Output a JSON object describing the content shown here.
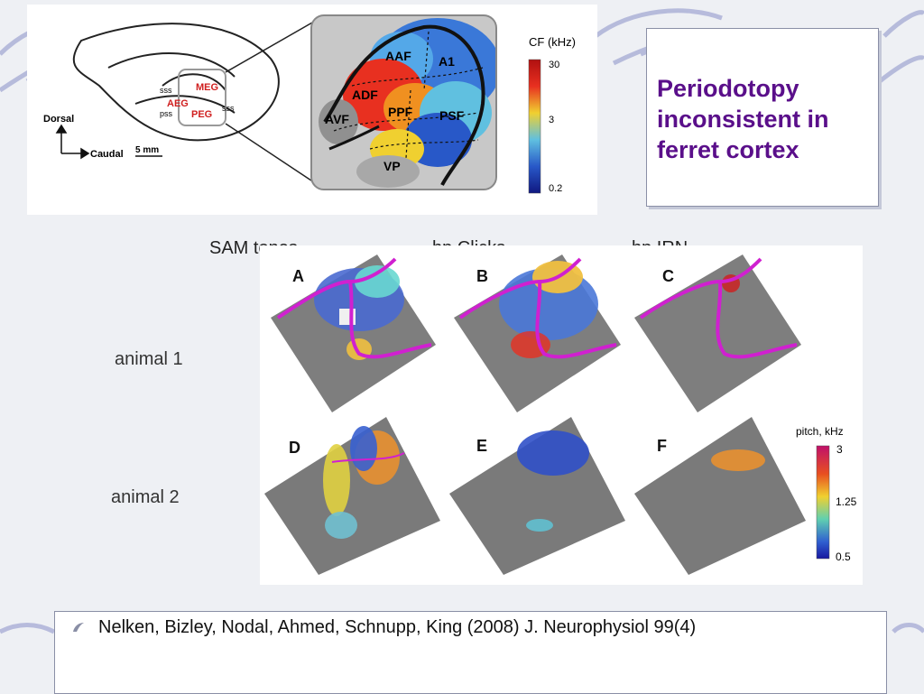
{
  "title": "Periodotopy inconsistent in ferret cortex",
  "figure_top": {
    "labels": {
      "dorsal": "Dorsal",
      "caudal": "Caudal",
      "scale": "5 mm",
      "sss_left": "sss",
      "pss": "pss",
      "sss_right": "sss",
      "meg": "MEG",
      "aeg": "AEG",
      "peg": "PEG"
    },
    "fields": [
      "AAF",
      "A1",
      "ADF",
      "PPF",
      "PSF",
      "AVF",
      "VP"
    ],
    "colorbar": {
      "title": "CF (kHz)",
      "ticks": [
        "30",
        "3",
        "0.2"
      ]
    }
  },
  "columns": [
    "SAM tones",
    "hp Clicks",
    "hp IRN"
  ],
  "rows": [
    "animal 1",
    "animal 2"
  ],
  "panels": [
    "A",
    "B",
    "C",
    "D",
    "E",
    "F"
  ],
  "pitch_colorbar": {
    "title": "pitch, kHz",
    "ticks": [
      "3",
      "1.25",
      "0.5"
    ]
  },
  "reference": "Nelken, Bizley, Nodal, Ahmed, Schnupp, King (2008) J. Neurophysiol 99(4)",
  "colors": {
    "title": "#5a0f8a",
    "accent_swirl": "#6a72b8",
    "outline": "#c71585"
  }
}
